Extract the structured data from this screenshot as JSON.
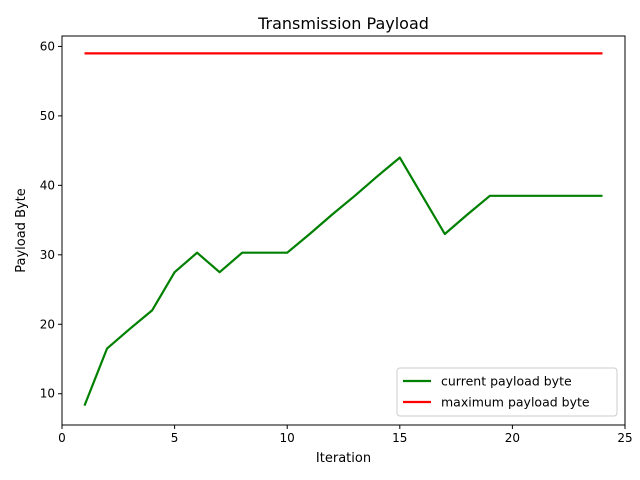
{
  "chart_data": {
    "type": "line",
    "title": "Transmission Payload",
    "xlabel": "Iteration",
    "ylabel": "Payload Byte",
    "xlim": [
      0,
      25
    ],
    "ylim": [
      5.5,
      61.5
    ],
    "xticks": [
      0,
      5,
      10,
      15,
      20,
      25
    ],
    "yticks": [
      10,
      20,
      30,
      40,
      50,
      60
    ],
    "grid": false,
    "legend_position": "lower-right",
    "series": [
      {
        "name": "current payload byte",
        "color": "#008000",
        "x": [
          1,
          2,
          3,
          4,
          5,
          6,
          7,
          8,
          9,
          10,
          11,
          12,
          13,
          14,
          15,
          16,
          17,
          18,
          19,
          20,
          21,
          22,
          23,
          24
        ],
        "y": [
          8.3,
          16.5,
          19.3,
          22.0,
          27.5,
          30.3,
          27.5,
          30.3,
          30.3,
          30.3,
          33.0,
          35.8,
          38.5,
          41.3,
          44.0,
          38.5,
          33.0,
          35.8,
          38.5,
          38.5,
          38.5,
          38.5,
          38.5,
          38.5
        ]
      },
      {
        "name": "maximum payload byte",
        "color": "#ff0000",
        "x": [
          1,
          2,
          3,
          4,
          5,
          6,
          7,
          8,
          9,
          10,
          11,
          12,
          13,
          14,
          15,
          16,
          17,
          18,
          19,
          20,
          21,
          22,
          23,
          24
        ],
        "y": [
          59,
          59,
          59,
          59,
          59,
          59,
          59,
          59,
          59,
          59,
          59,
          59,
          59,
          59,
          59,
          59,
          59,
          59,
          59,
          59,
          59,
          59,
          59,
          59
        ]
      }
    ]
  }
}
